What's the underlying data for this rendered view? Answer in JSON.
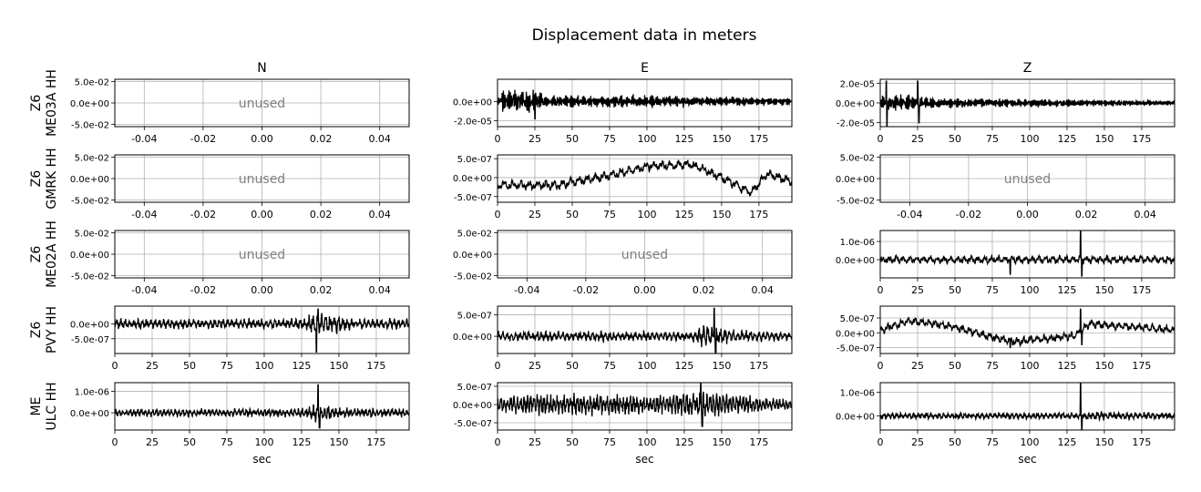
{
  "title": "Displacement data in meters",
  "columns": [
    "N",
    "E",
    "Z"
  ],
  "rows": [
    "Z6\nME03A HH",
    "Z6\nGMRK HH",
    "Z6\nME02A HH",
    "Z6\nPVY HH",
    "ME\nULC HH"
  ],
  "xlabel": "sec",
  "unused_label": "unused",
  "colors": {
    "trace": "#000000",
    "unused": "#808080",
    "grid": "#b0b0b0"
  },
  "chart_data": {
    "type": "line",
    "layout": "5x3 grid of subplots",
    "grid": true,
    "x_range": [
      0,
      197
    ],
    "x_ticks": [
      0,
      25,
      50,
      75,
      100,
      125,
      150,
      175
    ],
    "unused_x_ticks": [
      "-0.04",
      "-0.02",
      "0.00",
      "0.02",
      "0.04"
    ],
    "unused_y_ticks": [
      "5.0e-02",
      "0.0e+00",
      "-5.0e-02"
    ],
    "panels": [
      [
        {
          "unused": true,
          "xlabels": true
        },
        {
          "unused": false,
          "xlabels": true,
          "ylim": [
            -2.6e-05,
            2.3e-05
          ],
          "y_ticks": [
            {
              "v": 0,
              "l": "0.0e+00"
            },
            {
              "v": -2e-05,
              "l": "-2.0e-05"
            }
          ],
          "amp": 1.1e-05,
          "env": [
            [
              0,
              0.4
            ],
            [
              5,
              1.0
            ],
            [
              25,
              1.0
            ],
            [
              30,
              0.6
            ],
            [
              60,
              0.5
            ],
            [
              100,
              0.55
            ],
            [
              150,
              0.4
            ],
            [
              197,
              0.3
            ]
          ],
          "spikes": [
            [
              25,
              -1.8e-05
            ]
          ],
          "freq": 1.3
        },
        {
          "unused": false,
          "xlabels": true,
          "ylim": [
            -2.4e-05,
            2.4e-05
          ],
          "y_ticks": [
            {
              "v": 2e-05,
              "l": "2.0e-05"
            },
            {
              "v": 0,
              "l": "0.0e+00"
            },
            {
              "v": -2e-05,
              "l": "-2.0e-05"
            }
          ],
          "amp": 8e-06,
          "env": [
            [
              0,
              0.8
            ],
            [
              25,
              1.0
            ],
            [
              35,
              0.6
            ],
            [
              60,
              0.5
            ],
            [
              110,
              0.45
            ],
            [
              197,
              0.25
            ]
          ],
          "spikes": [
            [
              4,
              2.2e-05
            ],
            [
              4.5,
              -2.3e-05
            ],
            [
              25,
              2.2e-05
            ],
            [
              26,
              -2e-05
            ]
          ],
          "freq": 1.3
        }
      ],
      [
        {
          "unused": true,
          "xlabels": true
        },
        {
          "unused": false,
          "xlabels": true,
          "ylim": [
            -6.5e-07,
            6e-07
          ],
          "y_ticks": [
            {
              "v": 5e-07,
              "l": "5.0e-07"
            },
            {
              "v": 0,
              "l": "0.0e+00"
            },
            {
              "v": -5e-07,
              "l": "-5.0e-07"
            }
          ],
          "amp": 1.2e-07,
          "trend": [
            [
              0,
              -2e-07
            ],
            [
              40,
              -2e-07
            ],
            [
              80,
              1e-07
            ],
            [
              100,
              3e-07
            ],
            [
              130,
              3.5e-07
            ],
            [
              150,
              0
            ],
            [
              170,
              -4e-07
            ],
            [
              180,
              1e-07
            ],
            [
              197,
              -1e-07
            ]
          ],
          "env": [
            [
              0,
              1
            ],
            [
              197,
              1
            ]
          ],
          "spikes": [],
          "freq": 0.18
        },
        {
          "unused": true,
          "xlabels": true
        }
      ],
      [
        {
          "unused": true,
          "xlabels": true
        },
        {
          "unused": true,
          "xlabels": true
        },
        {
          "unused": false,
          "xlabels": true,
          "ylim": [
            -1e-06,
            1.6e-06
          ],
          "y_ticks": [
            {
              "v": 1e-06,
              "l": "1.0e-06"
            },
            {
              "v": 0,
              "l": "0.0e+00"
            }
          ],
          "amp": 2e-07,
          "env": [
            [
              0,
              1
            ],
            [
              197,
              1
            ]
          ],
          "spikes": [
            [
              87,
              -8e-07
            ],
            [
              134,
              1.6e-06
            ],
            [
              135,
              -9e-07
            ]
          ],
          "freq": 0.22
        }
      ],
      [
        {
          "unused": false,
          "xlabels": true,
          "ylim": [
            -1e-06,
            6e-07
          ],
          "y_ticks": [
            {
              "v": 0,
              "l": "0.0e+00"
            },
            {
              "v": -5e-07,
              "l": "-5.0e-07"
            }
          ],
          "amp": 1.8e-07,
          "env": [
            [
              0,
              0.8
            ],
            [
              125,
              0.9
            ],
            [
              132,
              1.8
            ],
            [
              150,
              1.6
            ],
            [
              160,
              1.0
            ],
            [
              197,
              0.9
            ]
          ],
          "spikes": [
            [
              135,
              -9.5e-07
            ],
            [
              136,
              5e-07
            ]
          ],
          "freq": 0.35
        },
        {
          "unused": false,
          "xlabels": true,
          "ylim": [
            -4e-07,
            7e-07
          ],
          "y_ticks": [
            {
              "v": 5e-07,
              "l": "5.0e-07"
            },
            {
              "v": 0,
              "l": "0.0e+00"
            }
          ],
          "amp": 1.2e-07,
          "env": [
            [
              0,
              0.9
            ],
            [
              130,
              0.8
            ],
            [
              138,
              2.2
            ],
            [
              150,
              1.6
            ],
            [
              160,
              1.0
            ],
            [
              197,
              0.9
            ]
          ],
          "spikes": [
            [
              145,
              6.5e-07
            ],
            [
              146,
              -3.8e-07
            ]
          ],
          "freq": 0.35
        },
        {
          "unused": false,
          "xlabels": true,
          "ylim": [
            -7e-07,
            9e-07
          ],
          "y_ticks": [
            {
              "v": 5e-07,
              "l": "5.0e-07"
            },
            {
              "v": 0,
              "l": "0.0e+00"
            },
            {
              "v": -5e-07,
              "l": "-5.0e-07"
            }
          ],
          "amp": 1.3e-07,
          "trend": [
            [
              0,
              1e-07
            ],
            [
              20,
              4e-07
            ],
            [
              50,
              2e-07
            ],
            [
              70,
              -1e-07
            ],
            [
              90,
              -3e-07
            ],
            [
              110,
              -2e-07
            ],
            [
              130,
              -1e-07
            ],
            [
              140,
              3e-07
            ],
            [
              197,
              1e-07
            ]
          ],
          "env": [
            [
              0,
              1
            ],
            [
              197,
              1
            ]
          ],
          "spikes": [
            [
              87,
              -5e-07
            ],
            [
              134,
              8e-07
            ],
            [
              135,
              -4e-07
            ]
          ],
          "freq": 0.22
        }
      ],
      [
        {
          "unused": false,
          "xlabels": true,
          "ylim": [
            -8e-07,
            1.4e-06
          ],
          "y_ticks": [
            {
              "v": 1e-06,
              "l": "1.0e-06"
            },
            {
              "v": 0,
              "l": "0.0e+00"
            }
          ],
          "amp": 2e-07,
          "env": [
            [
              0,
              0.8
            ],
            [
              125,
              0.9
            ],
            [
              133,
              2.0
            ],
            [
              145,
              1.4
            ],
            [
              160,
              1.0
            ],
            [
              197,
              0.9
            ]
          ],
          "spikes": [
            [
              136,
              1.3e-06
            ],
            [
              137,
              -7e-07
            ]
          ],
          "freq": 0.4
        },
        {
          "unused": false,
          "xlabels": true,
          "ylim": [
            -7e-07,
            6e-07
          ],
          "y_ticks": [
            {
              "v": 5e-07,
              "l": "5.0e-07"
            },
            {
              "v": 0,
              "l": "0.0e+00"
            },
            {
              "v": -5e-07,
              "l": "-5.0e-07"
            }
          ],
          "amp": 2.2e-07,
          "env": [
            [
              0,
              0.8
            ],
            [
              20,
              1.2
            ],
            [
              40,
              1.1
            ],
            [
              60,
              1.3
            ],
            [
              100,
              1.0
            ],
            [
              140,
              1.5
            ],
            [
              160,
              1.1
            ],
            [
              197,
              0.6
            ]
          ],
          "spikes": [
            [
              136,
              6e-07
            ],
            [
              137,
              -6e-07
            ]
          ],
          "freq": 0.45
        },
        {
          "unused": false,
          "xlabels": true,
          "ylim": [
            -6e-07,
            1.4e-06
          ],
          "y_ticks": [
            {
              "v": 1e-06,
              "l": "1.0e-06"
            },
            {
              "v": 0,
              "l": "0.0e+00"
            }
          ],
          "amp": 1.2e-07,
          "env": [
            [
              0,
              1
            ],
            [
              130,
              1
            ],
            [
              137,
              1.6
            ],
            [
              160,
              1.1
            ],
            [
              197,
              1
            ]
          ],
          "spikes": [
            [
              134,
              1.4e-06
            ],
            [
              135,
              -6e-07
            ]
          ],
          "freq": 0.35
        }
      ]
    ]
  }
}
